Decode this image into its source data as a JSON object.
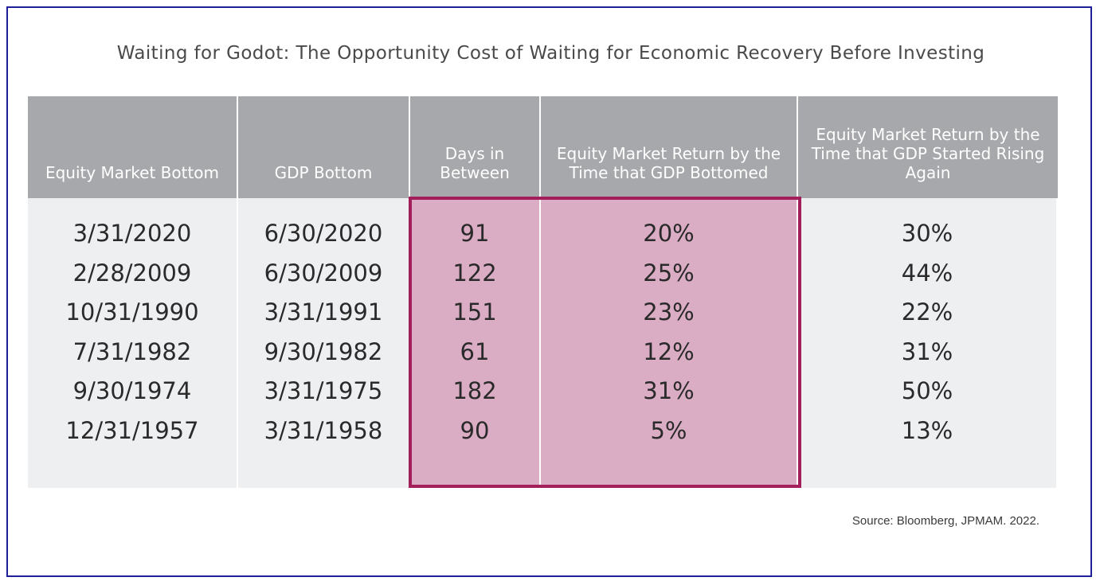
{
  "title": "Waiting for Godot: The Opportunity Cost of Waiting for Economic Recovery Before Investing",
  "columns": [
    "Equity Market Bottom",
    "GDP Bottom",
    "Days in Between",
    "Equity Market Return by the Time that GDP Bottomed",
    "Equity Market Return by the Time that GDP Started Rising Again"
  ],
  "rows": [
    [
      "3/31/2020",
      "6/30/2020",
      "91",
      "20%",
      "30%"
    ],
    [
      "2/28/2009",
      "6/30/2009",
      "122",
      "25%",
      "44%"
    ],
    [
      "10/31/1990",
      "3/31/1991",
      "151",
      "23%",
      "22%"
    ],
    [
      "7/31/1982",
      "9/30/1982",
      "61",
      "12%",
      "31%"
    ],
    [
      "9/30/1974",
      "3/31/1975",
      "182",
      "31%",
      "50%"
    ],
    [
      "12/31/1957",
      "3/31/1958",
      "90",
      "5%",
      "13%"
    ]
  ],
  "source": "Source: Bloomberg, JPMAM. 2022.",
  "colors": {
    "header_bg": "#a7a8ab",
    "body_bg": "#eeeff1",
    "highlight_fill": "#dbadc4",
    "highlight_border": "#a31f5c",
    "frame_border": "#1f1f9a"
  }
}
